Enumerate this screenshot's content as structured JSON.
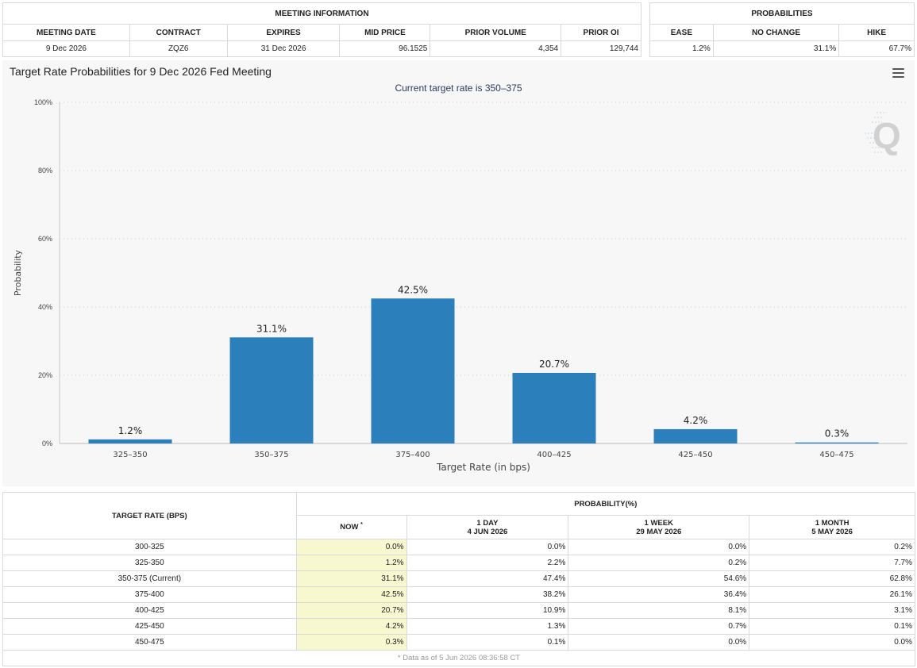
{
  "meeting_info": {
    "header": "MEETING INFORMATION",
    "columns": [
      "MEETING DATE",
      "CONTRACT",
      "EXPIRES",
      "MID PRICE",
      "PRIOR VOLUME",
      "PRIOR OI"
    ],
    "row": [
      "9 Dec 2026",
      "ZQZ6",
      "31 Dec 2026",
      "96.1525",
      "4,354",
      "129,744"
    ]
  },
  "probabilities": {
    "header": "PROBABILITIES",
    "columns": [
      "EASE",
      "NO CHANGE",
      "HIKE"
    ],
    "row": [
      "1.2%",
      "31.1%",
      "67.7%"
    ]
  },
  "chart_data": {
    "type": "bar",
    "title": "Target Rate Probabilities for 9 Dec 2026 Fed Meeting",
    "subtitle": "Current target rate is 350–375",
    "xlabel": "Target Rate (in bps)",
    "ylabel": "Probability",
    "ylim": [
      0,
      100
    ],
    "yticks": [
      "0%",
      "20%",
      "40%",
      "60%",
      "80%",
      "100%"
    ],
    "categories": [
      "325–350",
      "350–375",
      "375–400",
      "400–425",
      "425–450",
      "450–475"
    ],
    "values": [
      1.2,
      31.1,
      42.5,
      20.7,
      4.2,
      0.3
    ],
    "data_labels": [
      "1.2%",
      "31.1%",
      "42.5%",
      "20.7%",
      "4.2%",
      "0.3%"
    ],
    "bar_color": "#2b7fbb",
    "grid": true
  },
  "prob_table": {
    "target_header": "TARGET RATE (BPS)",
    "group_header": "PROBABILITY(%)",
    "col_now": "NOW",
    "col_now_mark": "*",
    "col_day": {
      "line1": "1 DAY",
      "line2": "4 JUN 2026"
    },
    "col_week": {
      "line1": "1 WEEK",
      "line2": "29 MAY 2026"
    },
    "col_month": {
      "line1": "1 MONTH",
      "line2": "5 MAY 2026"
    },
    "rows": [
      {
        "rate": "300-325",
        "now": "0.0%",
        "day": "0.0%",
        "week": "0.0%",
        "month": "0.2%"
      },
      {
        "rate": "325-350",
        "now": "1.2%",
        "day": "2.2%",
        "week": "0.2%",
        "month": "7.7%"
      },
      {
        "rate": "350-375 (Current)",
        "now": "31.1%",
        "day": "47.4%",
        "week": "54.6%",
        "month": "62.8%"
      },
      {
        "rate": "375-400",
        "now": "42.5%",
        "day": "38.2%",
        "week": "36.4%",
        "month": "26.1%"
      },
      {
        "rate": "400-425",
        "now": "20.7%",
        "day": "10.9%",
        "week": "8.1%",
        "month": "3.1%"
      },
      {
        "rate": "425-450",
        "now": "4.2%",
        "day": "1.3%",
        "week": "0.7%",
        "month": "0.1%"
      },
      {
        "rate": "450-475",
        "now": "0.3%",
        "day": "0.1%",
        "week": "0.0%",
        "month": "0.0%"
      }
    ],
    "footnote": "* Data as of 5 Jun 2026 08:36:58 CT"
  }
}
